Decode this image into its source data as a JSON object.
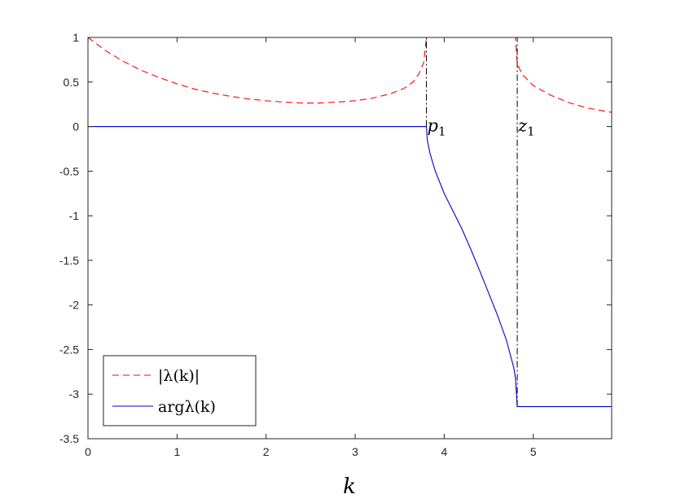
{
  "chart_data": {
    "type": "line",
    "title": "",
    "xlabel": "k",
    "ylabel": "",
    "xlim": [
      0,
      5.88
    ],
    "ylim": [
      -3.5,
      1
    ],
    "xticks": [
      0,
      1,
      2,
      3,
      4,
      5
    ],
    "xtick_labels": [
      "0",
      "1",
      "2",
      "3",
      "4",
      "5"
    ],
    "yticks": [
      1,
      0.5,
      0,
      -0.5,
      -1,
      -1.5,
      -2,
      -2.5,
      -3,
      -3.5
    ],
    "ytick_labels": [
      "1",
      "0.5",
      "0",
      "-0.5",
      "-1",
      "-1.5",
      "-2",
      "-2.5",
      "-3",
      "-3.5"
    ],
    "grid": false,
    "legend": "bottom-left",
    "series": [
      {
        "name": "|λ(k)|",
        "color": "#ff0000",
        "dash": "dashed",
        "points": [
          [
            0,
            1
          ],
          [
            0.2,
            0.85
          ],
          [
            0.4,
            0.73
          ],
          [
            0.6,
            0.63
          ],
          [
            0.8,
            0.55
          ],
          [
            1.0,
            0.48
          ],
          [
            1.2,
            0.42
          ],
          [
            1.4,
            0.375
          ],
          [
            1.6,
            0.34
          ],
          [
            1.8,
            0.31
          ],
          [
            2.0,
            0.29
          ],
          [
            2.2,
            0.275
          ],
          [
            2.4,
            0.265
          ],
          [
            2.6,
            0.265
          ],
          [
            2.8,
            0.275
          ],
          [
            3.0,
            0.29
          ],
          [
            3.2,
            0.32
          ],
          [
            3.4,
            0.37
          ],
          [
            3.55,
            0.43
          ],
          [
            3.65,
            0.5
          ],
          [
            3.72,
            0.6
          ],
          [
            3.77,
            0.72
          ],
          [
            3.8,
            1
          ],
          [
            4.8,
            1
          ],
          [
            4.82,
            0.7
          ],
          [
            4.88,
            0.58
          ],
          [
            5.0,
            0.46
          ],
          [
            5.2,
            0.35
          ],
          [
            5.4,
            0.27
          ],
          [
            5.6,
            0.21
          ],
          [
            5.88,
            0.16
          ]
        ]
      },
      {
        "name": "argλ(k)",
        "color": "#0000cc",
        "dash": "solid",
        "points": [
          [
            0,
            0
          ],
          [
            3.8,
            0
          ],
          [
            3.81,
            -0.15
          ],
          [
            3.84,
            -0.3
          ],
          [
            3.9,
            -0.5
          ],
          [
            4.0,
            -0.75
          ],
          [
            4.1,
            -0.95
          ],
          [
            4.2,
            -1.15
          ],
          [
            4.3,
            -1.38
          ],
          [
            4.4,
            -1.62
          ],
          [
            4.5,
            -1.87
          ],
          [
            4.6,
            -2.12
          ],
          [
            4.7,
            -2.4
          ],
          [
            4.78,
            -2.7
          ],
          [
            4.8,
            -2.82
          ],
          [
            4.82,
            -3.14
          ],
          [
            5.88,
            -3.14
          ]
        ]
      }
    ],
    "vlines": [
      {
        "x": 3.8,
        "ymin": 0,
        "ymax": 1,
        "style": "dashdot",
        "color": "#000000"
      },
      {
        "x": 4.82,
        "ymin": -3.14,
        "ymax": 1,
        "style": "dashdot",
        "color": "#000000"
      }
    ],
    "annotations": [
      {
        "base": "p",
        "sub": "1",
        "x": 3.8,
        "y": 0
      },
      {
        "base": "z",
        "sub": "1",
        "x": 4.82,
        "y": 0
      }
    ]
  }
}
